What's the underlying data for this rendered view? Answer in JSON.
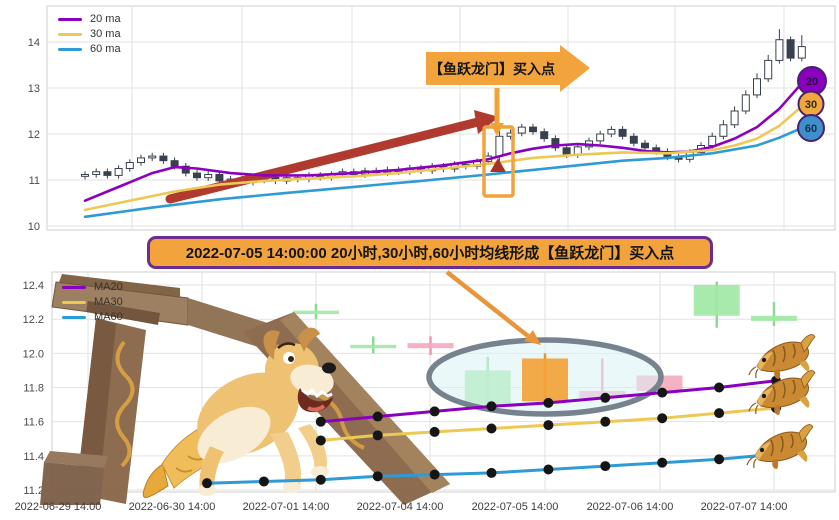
{
  "banner": {
    "text": "2022-07-05 14:00:00 20小时,30小时,60小时均线形成【鱼跃龙门】买入点",
    "bg": "#F2A33C",
    "border_color": "#6B2D90"
  },
  "top": {
    "legend1": "20 ma",
    "legend2": "30 ma",
    "legend3": "60 ma",
    "annotation": "【鱼跃龙门】买入点",
    "badge20": "20",
    "badge30": "30",
    "badge60": "60"
  },
  "bottom": {
    "legend1": "MA20",
    "legend2": "MA30",
    "legend3": "MA60"
  },
  "colors": {
    "ma20": "#8B00C0",
    "ma30": "#EDC854",
    "ma60": "#2E9BD6",
    "trend_arrow": "#B03A2E",
    "highlight_orange": "#F2A23C",
    "badge20": "#8B00C0",
    "badge30": "#F0A83C",
    "badge60": "#3E8FCC",
    "candle_dark": "#39404F",
    "ellipse_stroke": "#76828E"
  },
  "chart_data": [
    {
      "type": "candlestick",
      "name": "hourly-price-chart",
      "ylim": [
        9.9,
        14.6
      ],
      "y_ticks": [
        "10",
        "11",
        "12",
        "13",
        "14"
      ],
      "y_tick_vals": [
        10,
        11,
        12,
        13,
        14
      ],
      "grid": true,
      "legend_position": "top-left",
      "candles": [
        [
          11.08,
          11.19,
          11.01,
          11.12
        ],
        [
          11.12,
          11.25,
          11.05,
          11.18
        ],
        [
          11.18,
          11.25,
          11.03,
          11.1
        ],
        [
          11.1,
          11.32,
          11.03,
          11.25
        ],
        [
          11.25,
          11.45,
          11.18,
          11.38
        ],
        [
          11.38,
          11.55,
          11.31,
          11.48
        ],
        [
          11.48,
          11.59,
          11.41,
          11.52
        ],
        [
          11.52,
          11.59,
          11.35,
          11.42
        ],
        [
          11.42,
          11.49,
          11.23,
          11.3
        ],
        [
          11.3,
          11.37,
          11.08,
          11.15
        ],
        [
          11.15,
          11.22,
          10.98,
          11.05
        ],
        [
          11.05,
          11.19,
          10.98,
          11.12
        ],
        [
          11.12,
          11.19,
          10.91,
          10.98
        ],
        [
          10.98,
          11.09,
          10.91,
          11.02
        ],
        [
          11.02,
          11.09,
          10.88,
          10.95
        ],
        [
          10.95,
          11.07,
          10.88,
          11.0
        ],
        [
          11.0,
          11.13,
          10.93,
          11.06
        ],
        [
          11.06,
          11.13,
          10.91,
          10.98
        ],
        [
          10.98,
          11.12,
          10.91,
          11.05
        ],
        [
          11.05,
          11.12,
          10.95,
          11.02
        ],
        [
          11.02,
          11.17,
          10.95,
          11.1
        ],
        [
          11.1,
          11.17,
          10.99,
          11.06
        ],
        [
          11.06,
          11.19,
          10.99,
          11.12
        ],
        [
          11.12,
          11.25,
          11.05,
          11.18
        ],
        [
          11.18,
          11.25,
          11.05,
          11.12
        ],
        [
          11.12,
          11.27,
          11.05,
          11.2
        ],
        [
          11.2,
          11.27,
          11.09,
          11.16
        ],
        [
          11.16,
          11.29,
          11.09,
          11.22
        ],
        [
          11.22,
          11.29,
          11.11,
          11.18
        ],
        [
          11.18,
          11.33,
          11.11,
          11.26
        ],
        [
          11.26,
          11.33,
          11.13,
          11.2
        ],
        [
          11.2,
          11.37,
          11.13,
          11.3
        ],
        [
          11.3,
          11.37,
          11.17,
          11.24
        ],
        [
          11.24,
          11.41,
          11.17,
          11.34
        ],
        [
          11.34,
          11.41,
          11.23,
          11.3
        ],
        [
          11.3,
          11.47,
          11.23,
          11.4
        ],
        [
          11.4,
          11.6,
          11.33,
          11.52
        ],
        [
          11.52,
          12.12,
          11.3,
          11.95
        ],
        [
          11.95,
          12.1,
          11.88,
          12.02
        ],
        [
          12.02,
          12.22,
          11.95,
          12.15
        ],
        [
          12.15,
          12.22,
          11.98,
          12.05
        ],
        [
          12.05,
          12.12,
          11.83,
          11.9
        ],
        [
          11.9,
          11.97,
          11.63,
          11.7
        ],
        [
          11.7,
          11.77,
          11.48,
          11.55
        ],
        [
          11.55,
          11.79,
          11.48,
          11.72
        ],
        [
          11.72,
          11.92,
          11.65,
          11.85
        ],
        [
          11.85,
          12.07,
          11.78,
          12.0
        ],
        [
          12.0,
          12.17,
          11.93,
          12.1
        ],
        [
          12.1,
          12.17,
          11.88,
          11.95
        ],
        [
          11.95,
          12.02,
          11.73,
          11.8
        ],
        [
          11.8,
          11.87,
          11.63,
          11.7
        ],
        [
          11.7,
          11.77,
          11.55,
          11.62
        ],
        [
          11.62,
          11.69,
          11.43,
          11.5
        ],
        [
          11.5,
          11.57,
          11.38,
          11.45
        ],
        [
          11.45,
          11.67,
          11.38,
          11.6
        ],
        [
          11.6,
          11.82,
          11.53,
          11.75
        ],
        [
          11.75,
          12.03,
          11.68,
          11.95
        ],
        [
          11.95,
          12.3,
          11.88,
          12.2
        ],
        [
          12.2,
          12.6,
          12.13,
          12.5
        ],
        [
          12.5,
          12.95,
          12.43,
          12.85
        ],
        [
          12.85,
          13.32,
          12.78,
          13.2
        ],
        [
          13.2,
          13.72,
          13.13,
          13.6
        ],
        [
          13.6,
          14.28,
          13.53,
          14.05
        ],
        [
          14.05,
          14.12,
          13.58,
          13.65
        ],
        [
          13.65,
          14.15,
          13.58,
          13.9
        ]
      ],
      "buy_candle_index": 37,
      "series": [
        {
          "name": "20 ma",
          "color": "#8B00C0",
          "points": [
            [
              0,
              10.55
            ],
            [
              2,
              10.75
            ],
            [
              4,
              10.95
            ],
            [
              6,
              11.15
            ],
            [
              8,
              11.28
            ],
            [
              10,
              11.25
            ],
            [
              13,
              11.15
            ],
            [
              16,
              11.1
            ],
            [
              20,
              11.1
            ],
            [
              24,
              11.15
            ],
            [
              28,
              11.22
            ],
            [
              32,
              11.32
            ],
            [
              36,
              11.45
            ],
            [
              38,
              11.58
            ],
            [
              40,
              11.68
            ],
            [
              42,
              11.75
            ],
            [
              44,
              11.78
            ],
            [
              46,
              11.75
            ],
            [
              48,
              11.7
            ],
            [
              50,
              11.63
            ],
            [
              52,
              11.6
            ],
            [
              54,
              11.62
            ],
            [
              56,
              11.72
            ],
            [
              58,
              11.9
            ],
            [
              60,
              12.15
            ],
            [
              62,
              12.55
            ],
            [
              64,
              13.1
            ]
          ]
        },
        {
          "name": "30 ma",
          "color": "#EDC854",
          "points": [
            [
              0,
              10.35
            ],
            [
              4,
              10.55
            ],
            [
              8,
              10.75
            ],
            [
              12,
              10.9
            ],
            [
              16,
              10.98
            ],
            [
              20,
              11.03
            ],
            [
              24,
              11.08
            ],
            [
              28,
              11.15
            ],
            [
              32,
              11.25
            ],
            [
              36,
              11.35
            ],
            [
              40,
              11.48
            ],
            [
              44,
              11.55
            ],
            [
              48,
              11.6
            ],
            [
              52,
              11.58
            ],
            [
              56,
              11.65
            ],
            [
              58,
              11.75
            ],
            [
              60,
              11.9
            ],
            [
              62,
              12.18
            ],
            [
              64,
              12.6
            ]
          ]
        },
        {
          "name": "60 ma",
          "color": "#2E9BD6",
          "points": [
            [
              0,
              10.2
            ],
            [
              6,
              10.4
            ],
            [
              12,
              10.58
            ],
            [
              18,
              10.72
            ],
            [
              24,
              10.85
            ],
            [
              30,
              10.98
            ],
            [
              36,
              11.12
            ],
            [
              40,
              11.22
            ],
            [
              44,
              11.32
            ],
            [
              48,
              11.42
            ],
            [
              52,
              11.48
            ],
            [
              56,
              11.58
            ],
            [
              60,
              11.75
            ],
            [
              62,
              11.92
            ],
            [
              64,
              12.13
            ]
          ]
        }
      ]
    },
    {
      "type": "candlestick",
      "name": "ma-pattern-chart",
      "ylim": [
        11.2,
        12.46
      ],
      "y_ticks": [
        "11.2",
        "11.4",
        "11.6",
        "11.8",
        "12.0",
        "12.2",
        "12.4"
      ],
      "y_tick_vals": [
        11.2,
        11.4,
        11.6,
        11.8,
        12.0,
        12.2,
        12.4
      ],
      "grid": true,
      "legend_position": "top-left",
      "x_labels": [
        "2022-06-29 14:00",
        "2022-06-30 14:00",
        "2022-07-01 14:00",
        "2022-07-04 14:00",
        "2022-07-05 14:00",
        "2022-07-06 14:00",
        "2022-07-07 14:00"
      ],
      "candles": [
        {
          "o": 12.23,
          "h": 12.29,
          "l": 12.2,
          "c": 12.25,
          "color": "green"
        },
        {
          "o": 12.03,
          "h": 12.1,
          "l": 12.0,
          "c": 12.05,
          "color": "green"
        },
        {
          "o": 12.06,
          "h": 12.1,
          "l": 11.99,
          "c": 12.03,
          "color": "pink"
        },
        {
          "o": 11.7,
          "h": 11.98,
          "l": 11.66,
          "c": 11.9,
          "color": "green"
        },
        {
          "o": 11.72,
          "h": 12.0,
          "l": 11.7,
          "c": 11.97,
          "color": "orange",
          "highlight": true
        },
        {
          "o": 11.78,
          "h": 11.97,
          "l": 11.71,
          "c": 11.74,
          "color": "pink"
        },
        {
          "o": 11.87,
          "h": 11.9,
          "l": 11.75,
          "c": 11.78,
          "color": "pink"
        },
        {
          "o": 12.22,
          "h": 12.42,
          "l": 12.15,
          "c": 12.4,
          "color": "green"
        },
        {
          "o": 12.19,
          "h": 12.3,
          "l": 12.16,
          "c": 12.22,
          "color": "green"
        }
      ],
      "palette": {
        "green": {
          "body": "#9FE8A5",
          "wick": "#8ADB92"
        },
        "pink": {
          "body": "#F5AABF",
          "wick": "#F097AF"
        },
        "orange": {
          "body": "#F2A237",
          "wick": "#E8952F"
        }
      },
      "series": [
        {
          "name": "MA20",
          "color": "#8B00C0",
          "start": 2,
          "values": [
            11.54,
            11.57,
            11.6,
            11.63,
            11.66,
            11.69,
            11.71,
            11.74,
            11.77,
            11.8,
            11.84
          ]
        },
        {
          "name": "MA30",
          "color": "#EDC854",
          "start": 2,
          "values": [
            11.43,
            11.46,
            11.49,
            11.52,
            11.54,
            11.56,
            11.58,
            11.6,
            11.62,
            11.65,
            11.68
          ]
        },
        {
          "name": "MA60",
          "color": "#2E9BD6",
          "start": 0,
          "values": [
            11.24,
            11.25,
            11.26,
            11.28,
            11.29,
            11.3,
            11.32,
            11.34,
            11.36,
            11.38,
            11.41
          ]
        }
      ]
    }
  ]
}
